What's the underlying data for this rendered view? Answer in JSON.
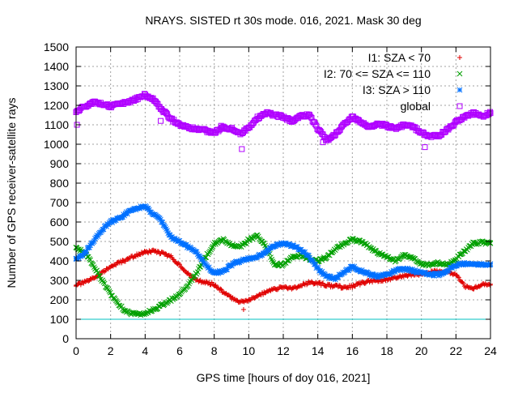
{
  "chart_data": {
    "type": "scatter",
    "title": "NRAYS. SISTED rt 30s mode. 016, 2021. Mask 30 deg",
    "xlabel": "GPS time [hours of doy 016, 2021]",
    "ylabel": "Number of GPS receiver-satellite rays",
    "xlim": [
      0,
      24
    ],
    "ylim": [
      0,
      1500
    ],
    "xticks": [
      0,
      2,
      4,
      6,
      8,
      10,
      12,
      14,
      16,
      18,
      20,
      22,
      24
    ],
    "yticks": [
      0,
      100,
      200,
      300,
      400,
      500,
      600,
      700,
      800,
      900,
      1000,
      1100,
      1200,
      1300,
      1400,
      1500
    ],
    "grid": true,
    "legend_position": "top-right",
    "reference_line": {
      "y": 100,
      "color": "#00c0c0"
    },
    "series": [
      {
        "name": "I1: SZA < 70",
        "marker": "plus",
        "color": "#e00000",
        "x": [
          0,
          0.5,
          1,
          1.5,
          2,
          2.5,
          3,
          3.5,
          4,
          4.5,
          5,
          5.5,
          6,
          6.5,
          7,
          7.5,
          8,
          8.5,
          9,
          9.5,
          10,
          10.5,
          11,
          11.5,
          12,
          12.5,
          13,
          13.5,
          14,
          14.5,
          15,
          15.5,
          16,
          16.5,
          17,
          17.5,
          18,
          18.5,
          19,
          19.5,
          20,
          20.5,
          21,
          21.5,
          22,
          22.5,
          23,
          23.5,
          24
        ],
        "values": [
          275,
          290,
          310,
          340,
          370,
          390,
          410,
          430,
          445,
          450,
          440,
          420,
          380,
          330,
          300,
          290,
          280,
          240,
          210,
          190,
          200,
          220,
          240,
          255,
          265,
          260,
          270,
          290,
          285,
          275,
          270,
          265,
          270,
          285,
          295,
          300,
          305,
          315,
          325,
          330,
          330,
          340,
          350,
          345,
          330,
          270,
          260,
          275,
          280
        ]
      },
      {
        "name": "I2: 70 <= SZA <= 110",
        "marker": "cross",
        "color": "#00a000",
        "x": [
          0,
          0.5,
          1,
          1.5,
          2,
          2.5,
          3,
          3.5,
          4,
          4.5,
          5,
          5.5,
          6,
          6.5,
          7,
          7.5,
          8,
          8.5,
          9,
          9.5,
          10,
          10.5,
          11,
          11.5,
          12,
          12.5,
          13,
          13.5,
          14,
          14.5,
          15,
          15.5,
          16,
          16.5,
          17,
          17.5,
          18,
          18.5,
          19,
          19.5,
          20,
          20.5,
          21,
          21.5,
          22,
          22.5,
          23,
          23.5,
          24
        ],
        "values": [
          470,
          440,
          380,
          300,
          230,
          170,
          135,
          125,
          130,
          150,
          175,
          200,
          230,
          280,
          340,
          420,
          490,
          510,
          480,
          470,
          510,
          530,
          470,
          380,
          380,
          420,
          430,
          410,
          400,
          420,
          460,
          490,
          510,
          500,
          470,
          440,
          420,
          400,
          430,
          420,
          380,
          380,
          390,
          380,
          410,
          450,
          490,
          495,
          490
        ]
      },
      {
        "name": "I3: SZA > 110",
        "marker": "star",
        "color": "#0070ff",
        "x": [
          0,
          0.5,
          1,
          1.5,
          2,
          2.5,
          3,
          3.5,
          4,
          4.5,
          5,
          5.5,
          6,
          6.5,
          7,
          7.5,
          8,
          8.5,
          9,
          9.5,
          10,
          10.5,
          11,
          11.5,
          12,
          12.5,
          13,
          13.5,
          14,
          14.5,
          15,
          15.5,
          16,
          16.5,
          17,
          17.5,
          18,
          18.5,
          19,
          19.5,
          20,
          20.5,
          21,
          21.5,
          22,
          22.5,
          23,
          23.5,
          24
        ],
        "values": [
          410,
          440,
          500,
          560,
          600,
          620,
          650,
          670,
          680,
          640,
          600,
          520,
          500,
          470,
          440,
          380,
          340,
          345,
          380,
          400,
          410,
          420,
          450,
          480,
          490,
          480,
          460,
          420,
          360,
          320,
          310,
          340,
          370,
          350,
          330,
          320,
          330,
          350,
          360,
          350,
          340,
          330,
          330,
          350,
          380,
          385,
          385,
          380,
          385
        ]
      },
      {
        "name": "global",
        "marker": "square",
        "color": "#b000ff",
        "x": [
          0,
          0.5,
          1,
          1.5,
          2,
          2.5,
          3,
          3.5,
          4,
          4.5,
          5,
          5.5,
          6,
          6.5,
          7,
          7.5,
          8,
          8.5,
          9,
          9.5,
          10,
          10.5,
          11,
          11.5,
          12,
          12.5,
          13,
          13.5,
          14,
          14.5,
          15,
          15.5,
          16,
          16.5,
          17,
          17.5,
          18,
          18.5,
          19,
          19.5,
          20,
          20.5,
          21,
          21.5,
          22,
          22.5,
          23,
          23.5,
          24
        ],
        "values": [
          1165,
          1195,
          1215,
          1210,
          1195,
          1205,
          1215,
          1235,
          1255,
          1230,
          1175,
          1130,
          1100,
          1085,
          1080,
          1070,
          1060,
          1085,
          1080,
          1055,
          1085,
          1135,
          1160,
          1150,
          1140,
          1120,
          1145,
          1150,
          1080,
          1020,
          1050,
          1100,
          1140,
          1110,
          1090,
          1105,
          1095,
          1080,
          1100,
          1090,
          1060,
          1040,
          1045,
          1075,
          1115,
          1140,
          1160,
          1145,
          1160
        ]
      }
    ],
    "outliers": [
      {
        "series": "I1: SZA < 70",
        "x": 9.7,
        "y": 150
      },
      {
        "series": "global",
        "x": 0.05,
        "y": 1100
      },
      {
        "series": "global",
        "x": 4.9,
        "y": 1120
      },
      {
        "series": "global",
        "x": 8.4,
        "y": 1095
      },
      {
        "series": "global",
        "x": 9.6,
        "y": 975
      },
      {
        "series": "global",
        "x": 14.3,
        "y": 1010
      },
      {
        "series": "global",
        "x": 20.2,
        "y": 985
      }
    ]
  }
}
